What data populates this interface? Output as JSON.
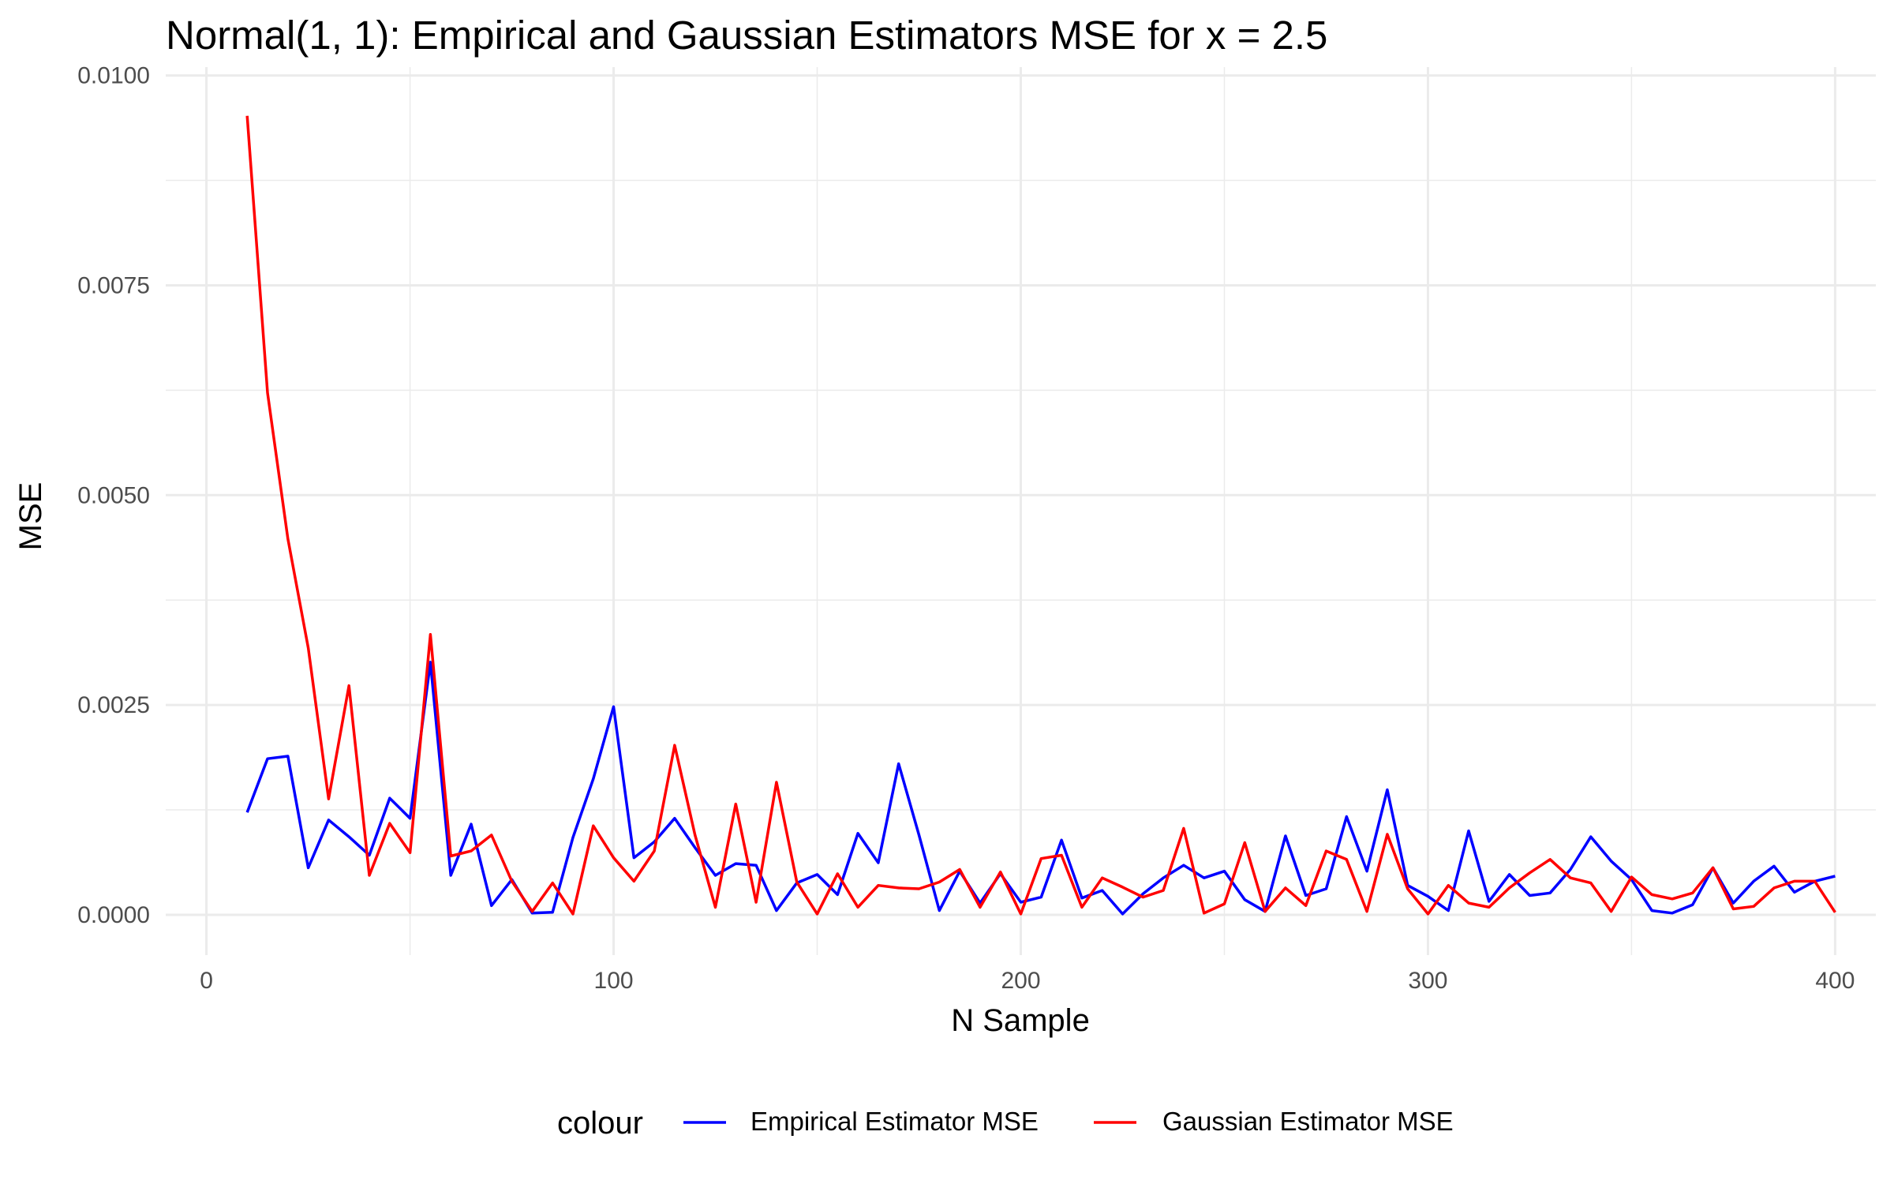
{
  "chart_data": {
    "type": "line",
    "title": "Normal(1, 1): Empirical and Gaussian Estimators MSE for x = 2.5",
    "xlabel": "N Sample",
    "ylabel": "MSE",
    "xlim": [
      -10,
      410
    ],
    "ylim": [
      -0.00048,
      0.0101
    ],
    "x_ticks": [
      0,
      100,
      200,
      300,
      400
    ],
    "x_tick_labels": [
      "0",
      "100",
      "200",
      "300",
      "400"
    ],
    "y_ticks": [
      0,
      0.0025,
      0.005,
      0.0075,
      0.01
    ],
    "y_tick_labels": [
      "0.0000",
      "0.0025",
      "0.0050",
      "0.0075",
      "0.0100"
    ],
    "grid": true,
    "legend": {
      "title": "colour",
      "position": "bottom"
    },
    "x": [
      10,
      15,
      20,
      25,
      30,
      35,
      40,
      45,
      50,
      55,
      60,
      65,
      70,
      75,
      80,
      85,
      90,
      95,
      100,
      105,
      110,
      115,
      120,
      125,
      130,
      135,
      140,
      145,
      150,
      155,
      160,
      165,
      170,
      175,
      180,
      185,
      190,
      195,
      200,
      205,
      210,
      215,
      220,
      225,
      230,
      235,
      240,
      245,
      250,
      255,
      260,
      265,
      270,
      275,
      280,
      285,
      290,
      295,
      300,
      305,
      310,
      315,
      320,
      325,
      330,
      335,
      340,
      345,
      350,
      355,
      360,
      365,
      370,
      375,
      380,
      385,
      390,
      395,
      400
    ],
    "series": [
      {
        "name": "Empirical Estimator MSE",
        "color": "#0000ff",
        "values": [
          0.00122,
          0.00186,
          0.00189,
          0.00056,
          0.00113,
          0.00093,
          0.00071,
          0.00139,
          0.00115,
          0.00301,
          0.00047,
          0.00108,
          0.00011,
          0.00042,
          2e-05,
          3e-05,
          0.00092,
          0.00162,
          0.00248,
          0.00068,
          0.00087,
          0.00115,
          0.0008,
          0.00047,
          0.00061,
          0.00059,
          5e-05,
          0.00038,
          0.00048,
          0.00024,
          0.00097,
          0.00062,
          0.0018,
          0.00095,
          5e-05,
          0.00052,
          0.00014,
          0.00049,
          0.00015,
          0.00021,
          0.00089,
          0.0002,
          0.00029,
          1e-05,
          0.00025,
          0.00044,
          0.00059,
          0.00044,
          0.00052,
          0.00018,
          4e-05,
          0.00094,
          0.00023,
          0.00031,
          0.00117,
          0.00052,
          0.00149,
          0.00035,
          0.00022,
          5e-05,
          0.001,
          0.00016,
          0.00048,
          0.00023,
          0.00026,
          0.00054,
          0.00093,
          0.00064,
          0.00042,
          5e-05,
          2e-05,
          0.00012,
          0.00056,
          0.00014,
          0.0004,
          0.00058,
          0.00027,
          0.0004,
          0.00046
        ]
      },
      {
        "name": "Gaussian Estimator MSE",
        "color": "#ff0000",
        "values": [
          0.00952,
          0.00622,
          0.00448,
          0.00318,
          0.00138,
          0.00273,
          0.00047,
          0.00109,
          0.00074,
          0.00334,
          0.0007,
          0.00076,
          0.00095,
          0.0004,
          4e-05,
          0.00038,
          1e-05,
          0.00106,
          0.00068,
          0.0004,
          0.00076,
          0.00202,
          0.00095,
          9e-05,
          0.00132,
          0.00015,
          0.00158,
          0.00039,
          1e-05,
          0.00049,
          9e-05,
          0.00035,
          0.00032,
          0.00031,
          0.00039,
          0.00054,
          9e-05,
          0.00051,
          1e-05,
          0.00067,
          0.00071,
          9e-05,
          0.00044,
          0.00033,
          0.00021,
          0.00029,
          0.00103,
          2e-05,
          0.00013,
          0.00086,
          4e-05,
          0.00032,
          0.00011,
          0.00076,
          0.00066,
          4e-05,
          0.00096,
          0.00031,
          1e-05,
          0.00035,
          0.00014,
          9e-05,
          0.00032,
          0.0005,
          0.00066,
          0.00044,
          0.00038,
          4e-05,
          0.00045,
          0.00024,
          0.00019,
          0.00026,
          0.00056,
          7e-05,
          0.0001,
          0.00032,
          0.0004,
          0.0004,
          3e-05
        ]
      }
    ]
  }
}
